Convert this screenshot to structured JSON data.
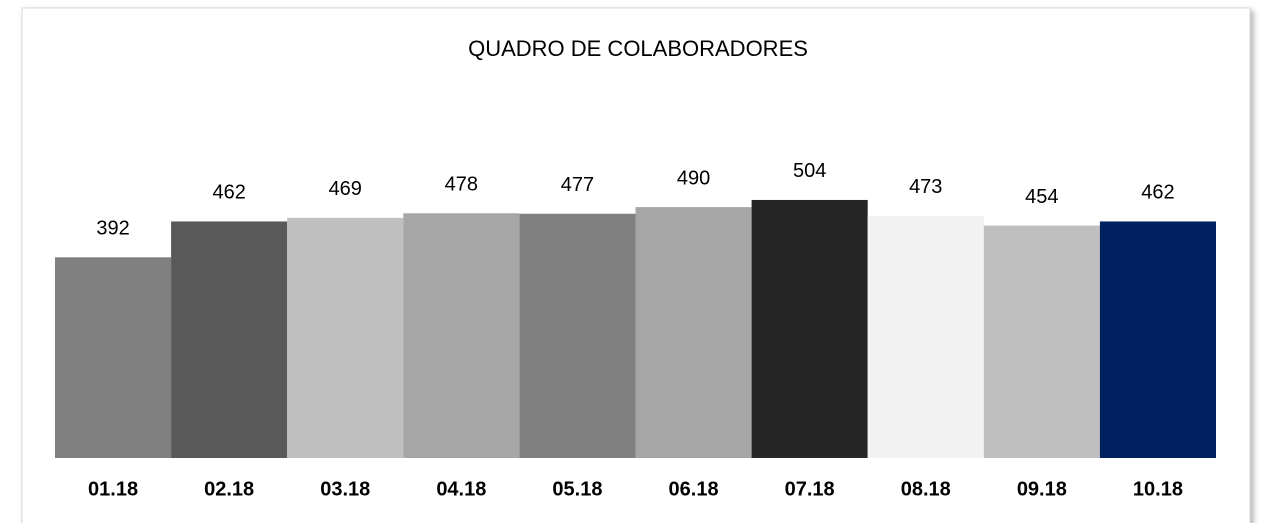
{
  "chart_data": {
    "type": "bar",
    "title": "QUADRO DE COLABORADORES",
    "categories": [
      "01.18",
      "02.18",
      "03.18",
      "04.18",
      "05.18",
      "06.18",
      "07.18",
      "08.18",
      "09.18",
      "10.18"
    ],
    "values": [
      392,
      462,
      469,
      478,
      477,
      490,
      504,
      473,
      454,
      462
    ],
    "colors": [
      "#808080",
      "#595959",
      "#bfbfbf",
      "#a6a6a6",
      "#808080",
      "#a6a6a6",
      "#262626",
      "#f2f2f2",
      "#bfbfbf",
      "#002060"
    ],
    "ylim": [
      0,
      600
    ]
  }
}
